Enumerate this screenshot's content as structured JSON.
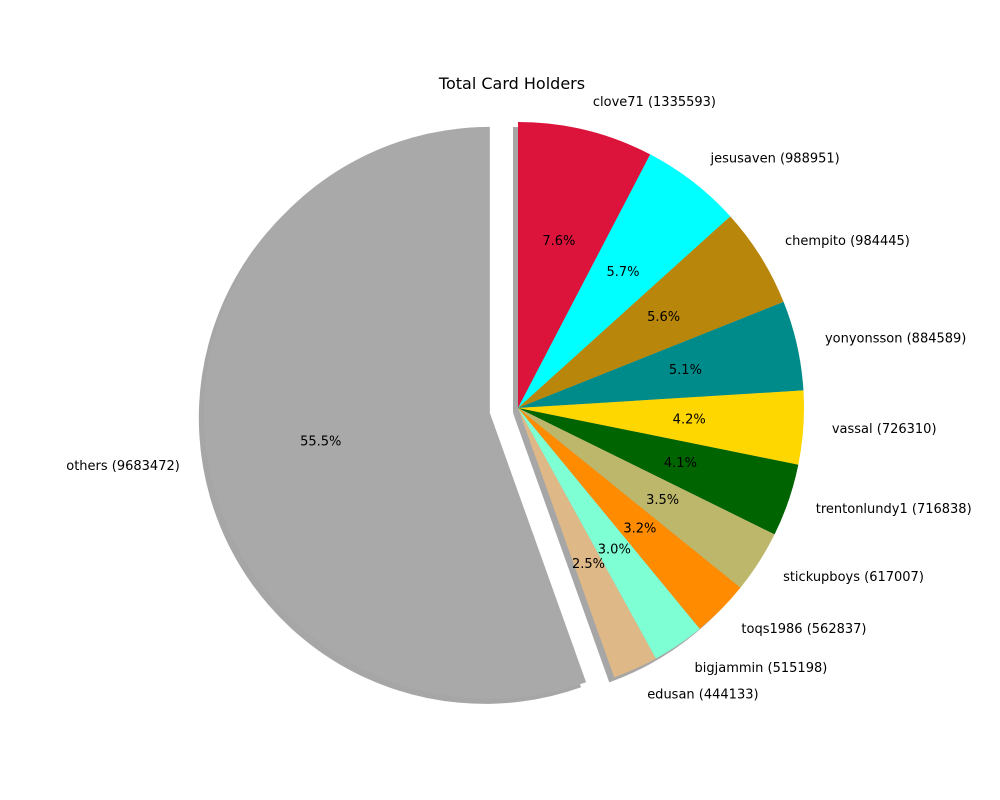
{
  "chart_data": {
    "type": "pie",
    "title": "Total Card Holders",
    "slices": [
      {
        "label": "clove71 (1335593)",
        "value": 1335593,
        "pct": "7.6%",
        "color": "#dc143c"
      },
      {
        "label": "jesusaven (988951)",
        "value": 988951,
        "pct": "5.7%",
        "color": "#00ffff"
      },
      {
        "label": "chempito (984445)",
        "value": 984445,
        "pct": "5.6%",
        "color": "#b8860b"
      },
      {
        "label": "yonyonsson (884589)",
        "value": 884589,
        "pct": "5.1%",
        "color": "#008b8b"
      },
      {
        "label": "vassal (726310)",
        "value": 726310,
        "pct": "4.2%",
        "color": "#ffd700"
      },
      {
        "label": "trentonlundy1 (716838)",
        "value": 716838,
        "pct": "4.1%",
        "color": "#006400"
      },
      {
        "label": "stickupboys (617007)",
        "value": 617007,
        "pct": "3.5%",
        "color": "#bdb76b"
      },
      {
        "label": "toqs1986 (562837)",
        "value": 562837,
        "pct": "3.2%",
        "color": "#ff8c00"
      },
      {
        "label": "bigjammin (515198)",
        "value": 515198,
        "pct": "3.0%",
        "color": "#7fffd4"
      },
      {
        "label": "edusan (444133)",
        "value": 444133,
        "pct": "2.5%",
        "color": "#deb887"
      },
      {
        "label": "others (9683472)",
        "value": 9683472,
        "pct": "55.5%",
        "color": "#a9a9a9",
        "explode": 0.1
      }
    ],
    "start_angle_deg": 90,
    "direction": "clockwise",
    "shadow": true,
    "legend": "none"
  }
}
